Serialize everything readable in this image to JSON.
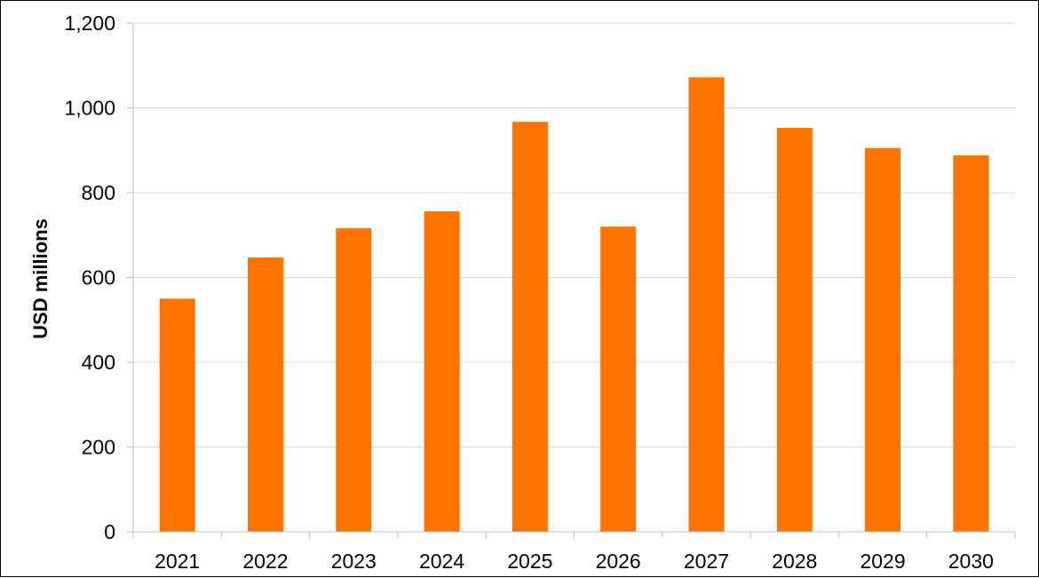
{
  "chart_data": {
    "type": "bar",
    "categories": [
      "2021",
      "2022",
      "2023",
      "2024",
      "2025",
      "2026",
      "2027",
      "2028",
      "2029",
      "2030"
    ],
    "values": [
      550,
      647,
      716,
      756,
      967,
      720,
      1072,
      953,
      905,
      888
    ],
    "ylabel": "USD millions",
    "xlabel": "",
    "ylim": [
      0,
      1200
    ],
    "yticks": [
      0,
      200,
      400,
      600,
      800,
      1000,
      1200
    ],
    "ytick_labels": [
      "0",
      "200",
      "400",
      "600",
      "800",
      "1,000",
      "1,200"
    ],
    "grid": true,
    "legend": "none",
    "bar_color": "#ff7300",
    "grid_color": "#d9d9d9",
    "axis_color": "#bfbfbf"
  }
}
